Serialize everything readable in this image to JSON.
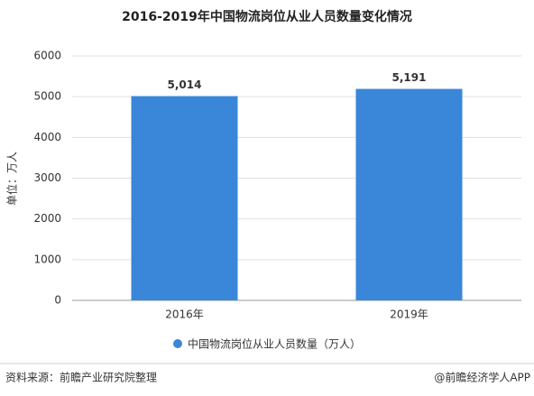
{
  "chart_data": {
    "type": "bar",
    "title": "2016-2019年中国物流岗位从业人员数量变化情况",
    "categories": [
      "2016年",
      "2019年"
    ],
    "series": [
      {
        "name": "中国物流岗位从业人员数量（万人）",
        "color": "#3a87d9",
        "values": [
          5014,
          5191
        ],
        "value_labels": [
          "5,014",
          "5,191"
        ]
      }
    ],
    "ylabel": "单位：万人",
    "ylim": [
      0,
      6000
    ],
    "yticks": [
      0,
      1000,
      2000,
      3000,
      4000,
      5000,
      6000
    ],
    "grid": true,
    "legend": "bottom",
    "source": "资料来源：前瞻产业研究院整理",
    "credit": "@前瞻经济学人APP"
  }
}
